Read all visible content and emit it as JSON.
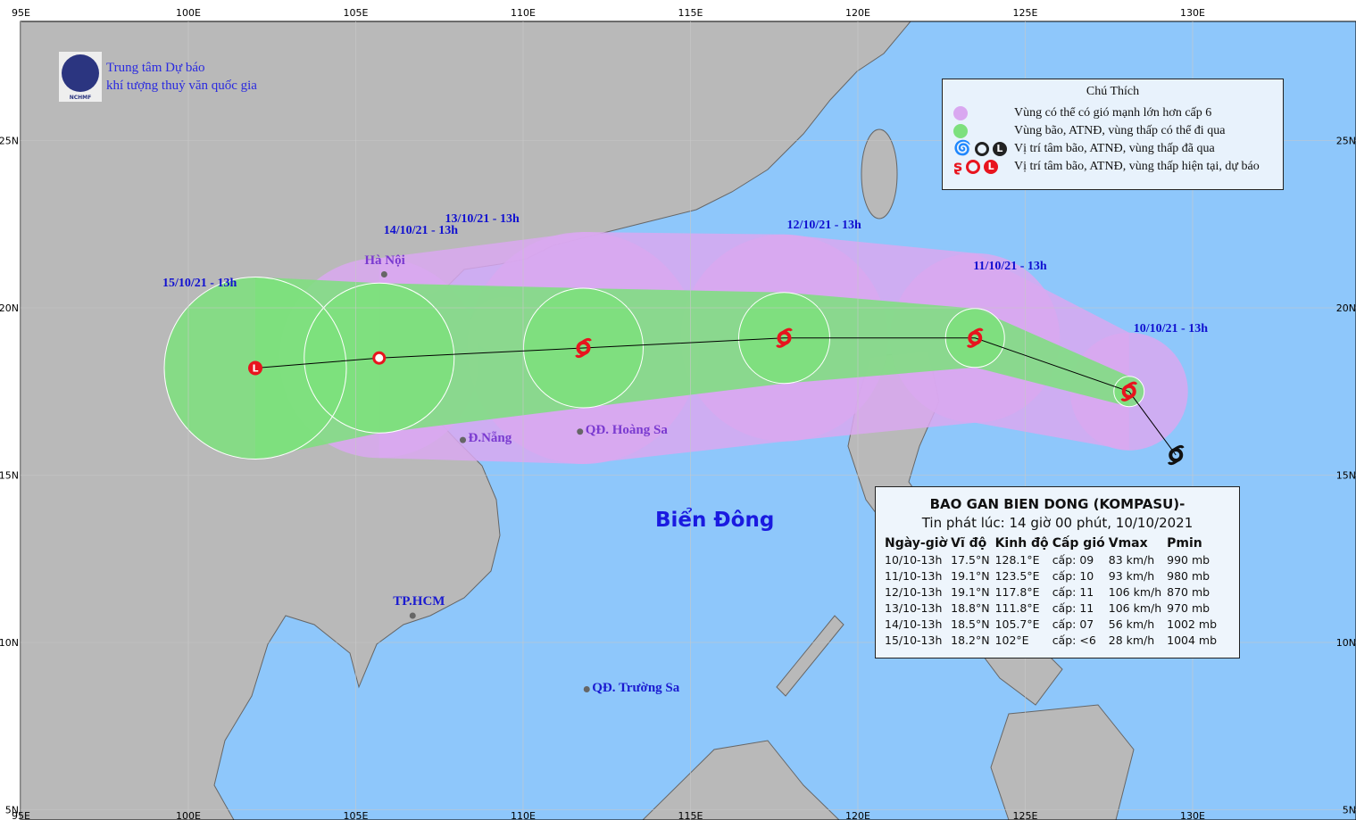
{
  "agency": {
    "name_line1": "Trung tâm Dự báo",
    "name_line2": "khí tượng thuỷ văn quốc gia",
    "logo_text": "NCHMF"
  },
  "map": {
    "lon_ticks": [
      "95E",
      "100E",
      "105E",
      "110E",
      "115E",
      "120E",
      "125E",
      "130E"
    ],
    "lat_ticks": [
      "25N",
      "20N",
      "15N",
      "10N",
      "5N"
    ],
    "sea_label": "Biển Đông",
    "colors": {
      "sea": "#8ec7fb",
      "land": "#b9b9b9",
      "wind_zone": "#d9a8f0",
      "storm_zone": "#7de07d",
      "track": "#000000",
      "marker": "#e8141e"
    },
    "places": [
      {
        "name": "Hà Nội",
        "lon": 105.85,
        "lat": 21.0
      },
      {
        "name": "Đ.Nẵng",
        "lon": 108.2,
        "lat": 16.05
      },
      {
        "name": "QĐ. Hoàng Sa",
        "lon": 111.7,
        "lat": 16.3
      },
      {
        "name": "TP.HCM",
        "lon": 106.7,
        "lat": 10.8
      },
      {
        "name": "QĐ. Trường Sa",
        "lon": 111.9,
        "lat": 8.6
      }
    ]
  },
  "track": [
    {
      "label": "10/10/21 - 13h",
      "lon": 128.1,
      "lat": 17.5,
      "type": "storm"
    },
    {
      "label": "11/10/21 - 13h",
      "lon": 123.5,
      "lat": 19.1,
      "type": "storm"
    },
    {
      "label": "12/10/21 - 13h",
      "lon": 117.8,
      "lat": 19.1,
      "type": "storm"
    },
    {
      "label": "13/10/21 - 13h",
      "lon": 111.8,
      "lat": 18.8,
      "type": "storm"
    },
    {
      "label": "14/10/21 - 13h",
      "lon": 105.7,
      "lat": 18.5,
      "type": "depression"
    },
    {
      "label": "15/10/21 - 13h",
      "lon": 102.0,
      "lat": 18.2,
      "type": "low"
    }
  ],
  "past_track": [
    {
      "lon": 129.5,
      "lat": 15.6,
      "type": "storm"
    }
  ],
  "legend": {
    "title": "Chú Thích",
    "items": [
      "Vùng có thể có gió mạnh lớn hơn cấp 6",
      "Vùng bão, ATNĐ, vùng thấp có thể đi qua",
      "Vị trí tâm bão, ATNĐ, vùng thấp đã qua",
      "Vị trí tâm bão, ATNĐ, vùng thấp hiện tại, dự báo"
    ]
  },
  "info": {
    "title": "BAO GAN BIEN DONG (KOMPASU)-",
    "issued": "Tin phát lúc: 14 giờ 00 phút, 10/10/2021",
    "headers": [
      "Ngày-giờ",
      "Vĩ độ",
      "Kinh độ",
      "Cấp gió",
      "Vmax",
      "Pmin"
    ],
    "rows": [
      [
        "10/10-13h",
        "17.5°N",
        "128.1°E",
        "cấp: 09",
        "83 km/h",
        "990 mb"
      ],
      [
        "11/10-13h",
        "19.1°N",
        "123.5°E",
        "cấp: 10",
        "93 km/h",
        "980 mb"
      ],
      [
        "12/10-13h",
        "19.1°N",
        "117.8°E",
        "cấp: 11",
        "106 km/h",
        "870 mb"
      ],
      [
        "13/10-13h",
        "18.8°N",
        "111.8°E",
        "cấp: 11",
        "106 km/h",
        "970 mb"
      ],
      [
        "14/10-13h",
        "18.5°N",
        "105.7°E",
        "cấp: 07",
        "56 km/h",
        "1002 mb"
      ],
      [
        "15/10-13h",
        "18.2°N",
        "102°E",
        "cấp: <6",
        "28 km/h",
        "1004 mb"
      ]
    ]
  }
}
